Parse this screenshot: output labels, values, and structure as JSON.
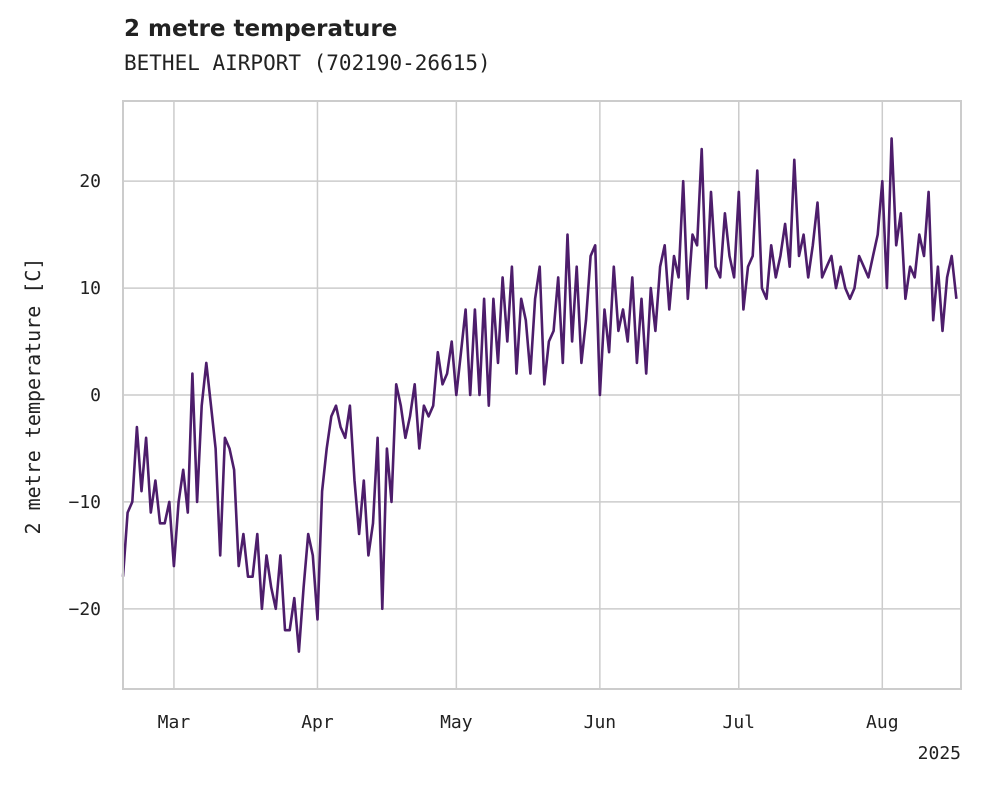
{
  "chart_data": {
    "type": "line",
    "title": "2 metre temperature",
    "subtitle": "BETHEL AIRPORT (702190-26615)",
    "ylabel": "2 metre temperature [C]",
    "xlabel": "",
    "x_tick_labels": [
      "Mar",
      "Apr",
      "May",
      "Jun",
      "Jul",
      "Aug"
    ],
    "x_offset_label": "2025",
    "y_ticks": [
      -20,
      -10,
      0,
      10,
      20
    ],
    "ylim": [
      -27.5,
      27.5
    ],
    "xlim": [
      "2025-02-18",
      "2025-08-18"
    ],
    "grid": true,
    "line_color": "#4d1d6b",
    "series": [
      {
        "x": [
          "2025-02-18",
          "2025-02-19",
          "2025-02-20",
          "2025-02-21",
          "2025-02-22",
          "2025-02-23",
          "2025-02-24",
          "2025-02-25",
          "2025-02-26",
          "2025-02-27",
          "2025-02-28",
          "2025-03-01",
          "2025-03-02",
          "2025-03-03",
          "2025-03-04",
          "2025-03-05",
          "2025-03-06",
          "2025-03-07",
          "2025-03-08",
          "2025-03-09",
          "2025-03-10",
          "2025-03-11",
          "2025-03-12",
          "2025-03-13",
          "2025-03-14",
          "2025-03-15",
          "2025-03-16",
          "2025-03-17",
          "2025-03-18",
          "2025-03-19",
          "2025-03-20",
          "2025-03-21",
          "2025-03-22",
          "2025-03-23",
          "2025-03-24",
          "2025-03-25",
          "2025-03-26",
          "2025-03-27",
          "2025-03-28",
          "2025-03-29",
          "2025-03-30",
          "2025-03-31",
          "2025-04-01",
          "2025-04-02",
          "2025-04-03",
          "2025-04-04",
          "2025-04-05",
          "2025-04-06",
          "2025-04-07",
          "2025-04-08",
          "2025-04-09",
          "2025-04-10",
          "2025-04-11",
          "2025-04-12",
          "2025-04-13",
          "2025-04-14",
          "2025-04-15",
          "2025-04-16",
          "2025-04-17",
          "2025-04-18",
          "2025-04-19",
          "2025-04-20",
          "2025-04-21",
          "2025-04-22",
          "2025-04-23",
          "2025-04-24",
          "2025-04-25",
          "2025-04-26",
          "2025-04-27",
          "2025-04-28",
          "2025-04-29",
          "2025-04-30",
          "2025-05-01",
          "2025-05-02",
          "2025-05-03",
          "2025-05-04",
          "2025-05-05",
          "2025-05-06",
          "2025-05-07",
          "2025-05-08",
          "2025-05-09",
          "2025-05-10",
          "2025-05-11",
          "2025-05-12",
          "2025-05-13",
          "2025-05-14",
          "2025-05-15",
          "2025-05-16",
          "2025-05-17",
          "2025-05-18",
          "2025-05-19",
          "2025-05-20",
          "2025-05-21",
          "2025-05-22",
          "2025-05-23",
          "2025-05-24",
          "2025-05-25",
          "2025-05-26",
          "2025-05-27",
          "2025-05-28",
          "2025-05-29",
          "2025-05-30",
          "2025-05-31",
          "2025-06-01",
          "2025-06-02",
          "2025-06-03",
          "2025-06-04",
          "2025-06-05",
          "2025-06-06",
          "2025-06-07",
          "2025-06-08",
          "2025-06-09",
          "2025-06-10",
          "2025-06-11",
          "2025-06-12",
          "2025-06-13",
          "2025-06-14",
          "2025-06-15",
          "2025-06-16",
          "2025-06-17",
          "2025-06-18",
          "2025-06-19",
          "2025-06-20",
          "2025-06-21",
          "2025-06-22",
          "2025-06-23",
          "2025-06-24",
          "2025-06-25",
          "2025-06-26",
          "2025-06-27",
          "2025-06-28",
          "2025-06-29",
          "2025-06-30",
          "2025-07-01",
          "2025-07-02",
          "2025-07-03",
          "2025-07-04",
          "2025-07-05",
          "2025-07-06",
          "2025-07-07",
          "2025-07-08",
          "2025-07-09",
          "2025-07-10",
          "2025-07-11",
          "2025-07-12",
          "2025-07-13",
          "2025-07-14",
          "2025-07-15",
          "2025-07-16",
          "2025-07-17",
          "2025-07-18",
          "2025-07-19",
          "2025-07-20",
          "2025-07-21",
          "2025-07-22",
          "2025-07-23",
          "2025-07-24",
          "2025-07-25",
          "2025-07-26",
          "2025-07-27",
          "2025-07-28",
          "2025-07-29",
          "2025-07-30",
          "2025-07-31",
          "2025-08-01",
          "2025-08-02",
          "2025-08-03",
          "2025-08-04",
          "2025-08-05",
          "2025-08-06",
          "2025-08-07",
          "2025-08-08",
          "2025-08-09",
          "2025-08-10",
          "2025-08-11",
          "2025-08-12",
          "2025-08-13",
          "2025-08-14",
          "2025-08-15",
          "2025-08-16",
          "2025-08-17"
        ],
        "y": [
          -17,
          -11,
          -10,
          -3,
          -9,
          -4,
          -11,
          -8,
          -12,
          -12,
          -10,
          -16,
          -10,
          -7,
          -11,
          2,
          -10,
          -1,
          3,
          -1,
          -5,
          -15,
          -4,
          -5,
          -7,
          -16,
          -13,
          -17,
          -17,
          -13,
          -20,
          -15,
          -18,
          -20,
          -15,
          -22,
          -22,
          -19,
          -24,
          -18,
          -13,
          -15,
          -21,
          -9,
          -5,
          -2,
          -1,
          -3,
          -4,
          -1,
          -8,
          -13,
          -8,
          -15,
          -12,
          -4,
          -20,
          -5,
          -10,
          1,
          -1,
          -4,
          -2,
          1,
          -5,
          -1,
          -2,
          -1,
          4,
          1,
          2,
          5,
          0,
          4,
          8,
          0,
          8,
          0,
          9,
          -1,
          9,
          3,
          11,
          5,
          12,
          2,
          9,
          7,
          2,
          9,
          12,
          1,
          5,
          6,
          11,
          3,
          15,
          5,
          12,
          3,
          7,
          13,
          14,
          0,
          8,
          4,
          12,
          6,
          8,
          5,
          11,
          3,
          9,
          2,
          10,
          6,
          12,
          14,
          8,
          13,
          11,
          20,
          9,
          15,
          14,
          23,
          10,
          19,
          12,
          11,
          17,
          13,
          11,
          19,
          8,
          12,
          13,
          21,
          10,
          9,
          14,
          11,
          13,
          16,
          12,
          22,
          13,
          15,
          11,
          14,
          18,
          11,
          12,
          13,
          10,
          12,
          10,
          9,
          10,
          13,
          12,
          11,
          13,
          15,
          20,
          10,
          24,
          14,
          17,
          9,
          12,
          11,
          15,
          13,
          19,
          7,
          12,
          6,
          11,
          13,
          9
        ]
      }
    ]
  }
}
